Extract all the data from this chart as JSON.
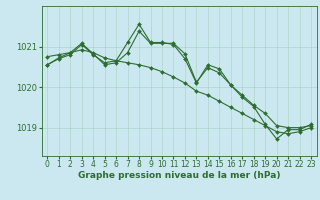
{
  "background_color": "#cbe8f0",
  "grid_color": "#a8cfc0",
  "line_color": "#2d6e2d",
  "marker": "D",
  "marker_size": 2.0,
  "line_width": 0.8,
  "xlabel": "Graphe pression niveau de la mer (hPa)",
  "xlabel_fontsize": 6.5,
  "tick_fontsize": 5.5,
  "xlim": [
    -0.5,
    23.5
  ],
  "ylim": [
    1018.3,
    1022.0
  ],
  "yticks": [
    1019,
    1020,
    1021
  ],
  "xticks": [
    0,
    1,
    2,
    3,
    4,
    5,
    6,
    7,
    8,
    9,
    10,
    11,
    12,
    13,
    14,
    15,
    16,
    17,
    18,
    19,
    20,
    21,
    22,
    23
  ],
  "series": [
    {
      "x": [
        0,
        1,
        2,
        3,
        4,
        5,
        6,
        7,
        8,
        9,
        10,
        11,
        12,
        13,
        14,
        15,
        16,
        17,
        18,
        19,
        20,
        21,
        22,
        23
      ],
      "y": [
        1020.55,
        1020.7,
        1020.8,
        1021.05,
        1020.8,
        1020.6,
        1020.65,
        1021.1,
        1021.55,
        1021.1,
        1021.1,
        1021.05,
        1020.7,
        1020.1,
        1020.55,
        1020.45,
        1020.05,
        1019.8,
        1019.55,
        1019.35,
        1019.05,
        1019.0,
        1019.0,
        1019.05
      ]
    },
    {
      "x": [
        0,
        1,
        2,
        3,
        4,
        5,
        6,
        7,
        8,
        9,
        10,
        11,
        12,
        13,
        14,
        15,
        16,
        17,
        18,
        19,
        20,
        21,
        22,
        23
      ],
      "y": [
        1020.55,
        1020.72,
        1020.85,
        1021.08,
        1020.82,
        1020.55,
        1020.6,
        1020.85,
        1021.38,
        1021.08,
        1021.08,
        1021.08,
        1020.82,
        1020.12,
        1020.48,
        1020.35,
        1020.05,
        1019.75,
        1019.52,
        1019.08,
        1018.72,
        1018.95,
        1018.95,
        1019.08
      ]
    },
    {
      "x": [
        0,
        1,
        2,
        3,
        4,
        5,
        6,
        7,
        8,
        9,
        10,
        11,
        12,
        13,
        14,
        15,
        16,
        17,
        18,
        19,
        20,
        21,
        22,
        23
      ],
      "y": [
        1020.75,
        1020.8,
        1020.85,
        1020.92,
        1020.85,
        1020.72,
        1020.65,
        1020.6,
        1020.55,
        1020.48,
        1020.38,
        1020.25,
        1020.1,
        1019.9,
        1019.8,
        1019.65,
        1019.5,
        1019.35,
        1019.2,
        1019.05,
        1018.9,
        1018.85,
        1018.9,
        1019.0
      ]
    }
  ]
}
